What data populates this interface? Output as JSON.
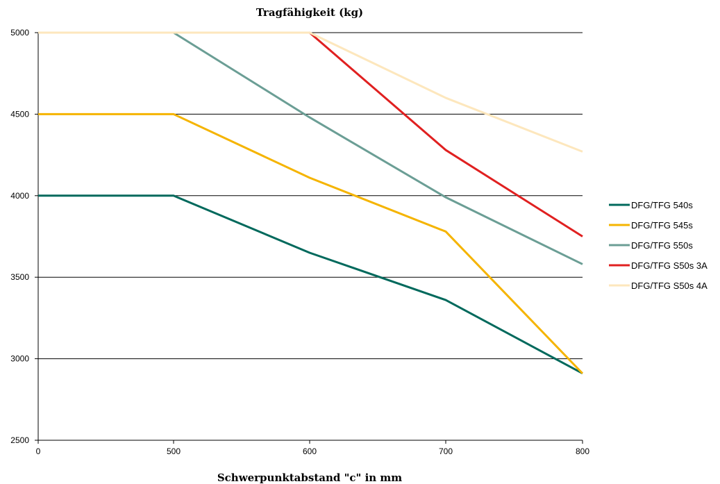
{
  "chart_data": {
    "type": "line",
    "title": "Tragfähigkeit (kg)",
    "xlabel": "Schwerpunktabstand \"c\" in mm",
    "ylabel": "",
    "categories": [
      "0",
      "500",
      "600",
      "700",
      "800"
    ],
    "x_tick_labels": [
      "0",
      "500",
      "600",
      "700",
      "800"
    ],
    "y_tick_labels": [
      "2500",
      "3000",
      "3500",
      "4000",
      "4500",
      "5000"
    ],
    "ylim": [
      2500,
      5000
    ],
    "y_ticks": [
      2500,
      3000,
      3500,
      4000,
      4500,
      5000
    ],
    "grid": "horizontal",
    "legend_position": "right",
    "series": [
      {
        "name": "DFG/TFG 540s",
        "color": "#00695c",
        "values": [
          4000,
          4000,
          3650,
          3360,
          2910
        ]
      },
      {
        "name": "DFG/TFG 545s",
        "color": "#f5b400",
        "values": [
          4500,
          4500,
          4110,
          3780,
          2910
        ]
      },
      {
        "name": "DFG/TFG 550s",
        "color": "#6b9e95",
        "values": [
          5000,
          5000,
          4480,
          3990,
          3580
        ]
      },
      {
        "name": "DFG/TFG S50s 3A",
        "color": "#e02020",
        "values": [
          5000,
          5000,
          5000,
          4280,
          3750
        ]
      },
      {
        "name": "DFG/TFG S50s 4A",
        "color": "#fde7bd",
        "values": [
          5000,
          5000,
          5000,
          4600,
          4270
        ]
      }
    ]
  }
}
